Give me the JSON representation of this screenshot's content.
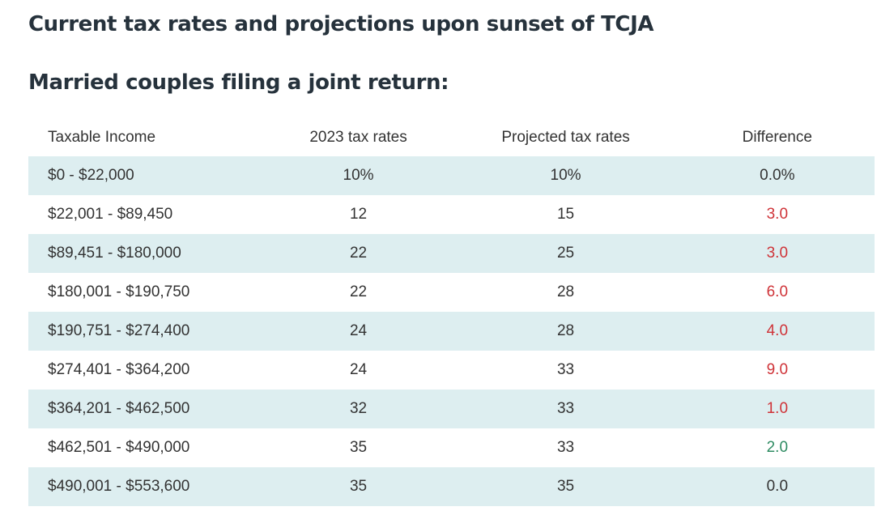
{
  "page": {
    "title": "Current tax rates and projections upon sunset of TCJA",
    "subtitle": "Married couples filing a joint return:"
  },
  "colors": {
    "heading": "#26323c",
    "text": "#333333",
    "shaded_row": "#ddeef0",
    "difference_red": "#cf3338",
    "difference_green": "#2e8b62"
  },
  "chart_data": {
    "type": "table",
    "title": "Current tax rates and projections upon sunset of TCJA",
    "subtitle": "Married couples filing a joint return:",
    "columns": [
      "Taxable Income",
      "2023 tax rates",
      "Projected tax rates",
      "Difference"
    ],
    "rows": [
      {
        "income": "$0 - $22,000",
        "rate_2023": "10%",
        "rate_projected": "10%",
        "difference": "0.0%",
        "diff_color": "dark",
        "shaded": true
      },
      {
        "income": "$22,001 - $89,450",
        "rate_2023": "12",
        "rate_projected": "15",
        "difference": "3.0",
        "diff_color": "red",
        "shaded": false
      },
      {
        "income": "$89,451 - $180,000",
        "rate_2023": "22",
        "rate_projected": "25",
        "difference": "3.0",
        "diff_color": "red",
        "shaded": true
      },
      {
        "income": "$180,001 - $190,750",
        "rate_2023": "22",
        "rate_projected": "28",
        "difference": "6.0",
        "diff_color": "red",
        "shaded": false
      },
      {
        "income": "$190,751 - $274,400",
        "rate_2023": "24",
        "rate_projected": "28",
        "difference": "4.0",
        "diff_color": "red",
        "shaded": true
      },
      {
        "income": "$274,401 - $364,200",
        "rate_2023": "24",
        "rate_projected": "33",
        "difference": "9.0",
        "diff_color": "red",
        "shaded": false
      },
      {
        "income": "$364,201 - $462,500",
        "rate_2023": "32",
        "rate_projected": "33",
        "difference": "1.0",
        "diff_color": "red",
        "shaded": true
      },
      {
        "income": "$462,501 - $490,000",
        "rate_2023": "35",
        "rate_projected": "33",
        "difference": "2.0",
        "diff_color": "green",
        "shaded": false
      },
      {
        "income": "$490,001 - $553,600",
        "rate_2023": "35",
        "rate_projected": "35",
        "difference": "0.0",
        "diff_color": "dark",
        "shaded": true
      }
    ]
  }
}
